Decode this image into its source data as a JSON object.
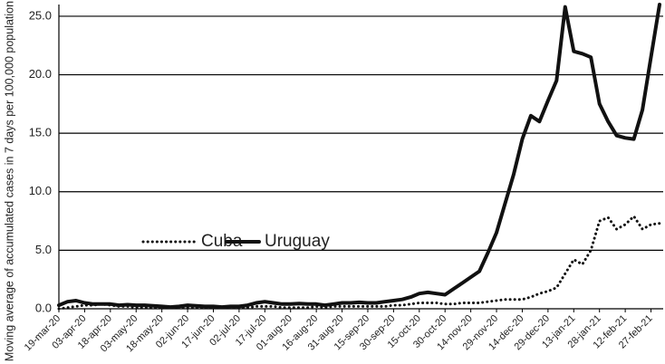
{
  "chart_data": {
    "type": "line",
    "y_label": "Moving average of accumulated cases in 7 days per 100,000  population",
    "categories": [
      "19-mar-20",
      null,
      null,
      "03-apr-20",
      null,
      null,
      "18-apr-20",
      null,
      null,
      "03-may-20",
      null,
      null,
      "18-may-20",
      null,
      null,
      "02-jun-20",
      null,
      null,
      "17-jun-20",
      null,
      null,
      "02-jul-20",
      null,
      null,
      "17-jul-20",
      null,
      null,
      "01-aug-20",
      null,
      null,
      "16-aug-20",
      null,
      null,
      "31-aug-20",
      null,
      null,
      "15-sep-20",
      null,
      null,
      "30-sep-20",
      null,
      null,
      "15-oct-20",
      null,
      null,
      "30-oct-20",
      null,
      null,
      "14-nov-20",
      null,
      null,
      "29-nov-20",
      null,
      null,
      "14-dec-20",
      null,
      null,
      "29-dec-20",
      null,
      null,
      "13-jan-21",
      null,
      null,
      "28-jan-21",
      null,
      null,
      "12-feb-21",
      null,
      null,
      "27-feb-21",
      null
    ],
    "series": [
      {
        "name": "Cuba",
        "color": "#111111",
        "style": "dotted",
        "values": [
          0.0,
          0.1,
          0.2,
          0.3,
          0.3,
          0.4,
          0.3,
          0.2,
          0.2,
          0.1,
          0.1,
          0.1,
          0.1,
          0.1,
          0.1,
          0.1,
          0.1,
          0.1,
          0.1,
          0.1,
          0.1,
          0.1,
          0.1,
          0.2,
          0.2,
          0.2,
          0.1,
          0.1,
          0.1,
          0.1,
          0.2,
          0.1,
          0.2,
          0.2,
          0.2,
          0.2,
          0.2,
          0.2,
          0.2,
          0.3,
          0.3,
          0.4,
          0.5,
          0.5,
          0.5,
          0.4,
          0.4,
          0.5,
          0.5,
          0.5,
          0.6,
          0.7,
          0.8,
          0.8,
          0.8,
          1.0,
          1.3,
          1.5,
          1.8,
          3.0,
          4.2,
          3.8,
          5.0,
          7.5,
          7.8,
          6.8,
          7.2,
          7.9,
          6.8,
          7.2,
          7.3
        ]
      },
      {
        "name": "Uruguay",
        "color": "#111111",
        "style": "solid",
        "values": [
          0.3,
          0.6,
          0.7,
          0.5,
          0.4,
          0.4,
          0.4,
          0.3,
          0.35,
          0.3,
          0.3,
          0.25,
          0.2,
          0.15,
          0.2,
          0.3,
          0.25,
          0.2,
          0.2,
          0.15,
          0.2,
          0.2,
          0.3,
          0.5,
          0.6,
          0.5,
          0.4,
          0.4,
          0.45,
          0.4,
          0.4,
          0.3,
          0.4,
          0.5,
          0.5,
          0.55,
          0.5,
          0.5,
          0.6,
          0.7,
          0.8,
          1.0,
          1.3,
          1.4,
          1.3,
          1.2,
          1.7,
          2.2,
          2.7,
          3.2,
          4.8,
          6.5,
          9.0,
          11.5,
          14.5,
          16.5,
          16.0,
          17.8,
          19.5,
          25.8,
          22.0,
          21.8,
          21.5,
          17.5,
          16.0,
          14.8,
          14.6,
          14.5,
          17.0,
          21.5,
          26.0
        ]
      }
    ],
    "ylim": [
      0,
      26
    ],
    "yticks": [
      {
        "value": 0,
        "label": "0.0"
      },
      {
        "value": 5,
        "label": "5.0"
      },
      {
        "value": 10,
        "label": "10.0"
      },
      {
        "value": 15,
        "label": "15.0"
      },
      {
        "value": 20,
        "label": "20.0"
      },
      {
        "value": 25,
        "label": "25.0"
      }
    ],
    "grid": true
  }
}
